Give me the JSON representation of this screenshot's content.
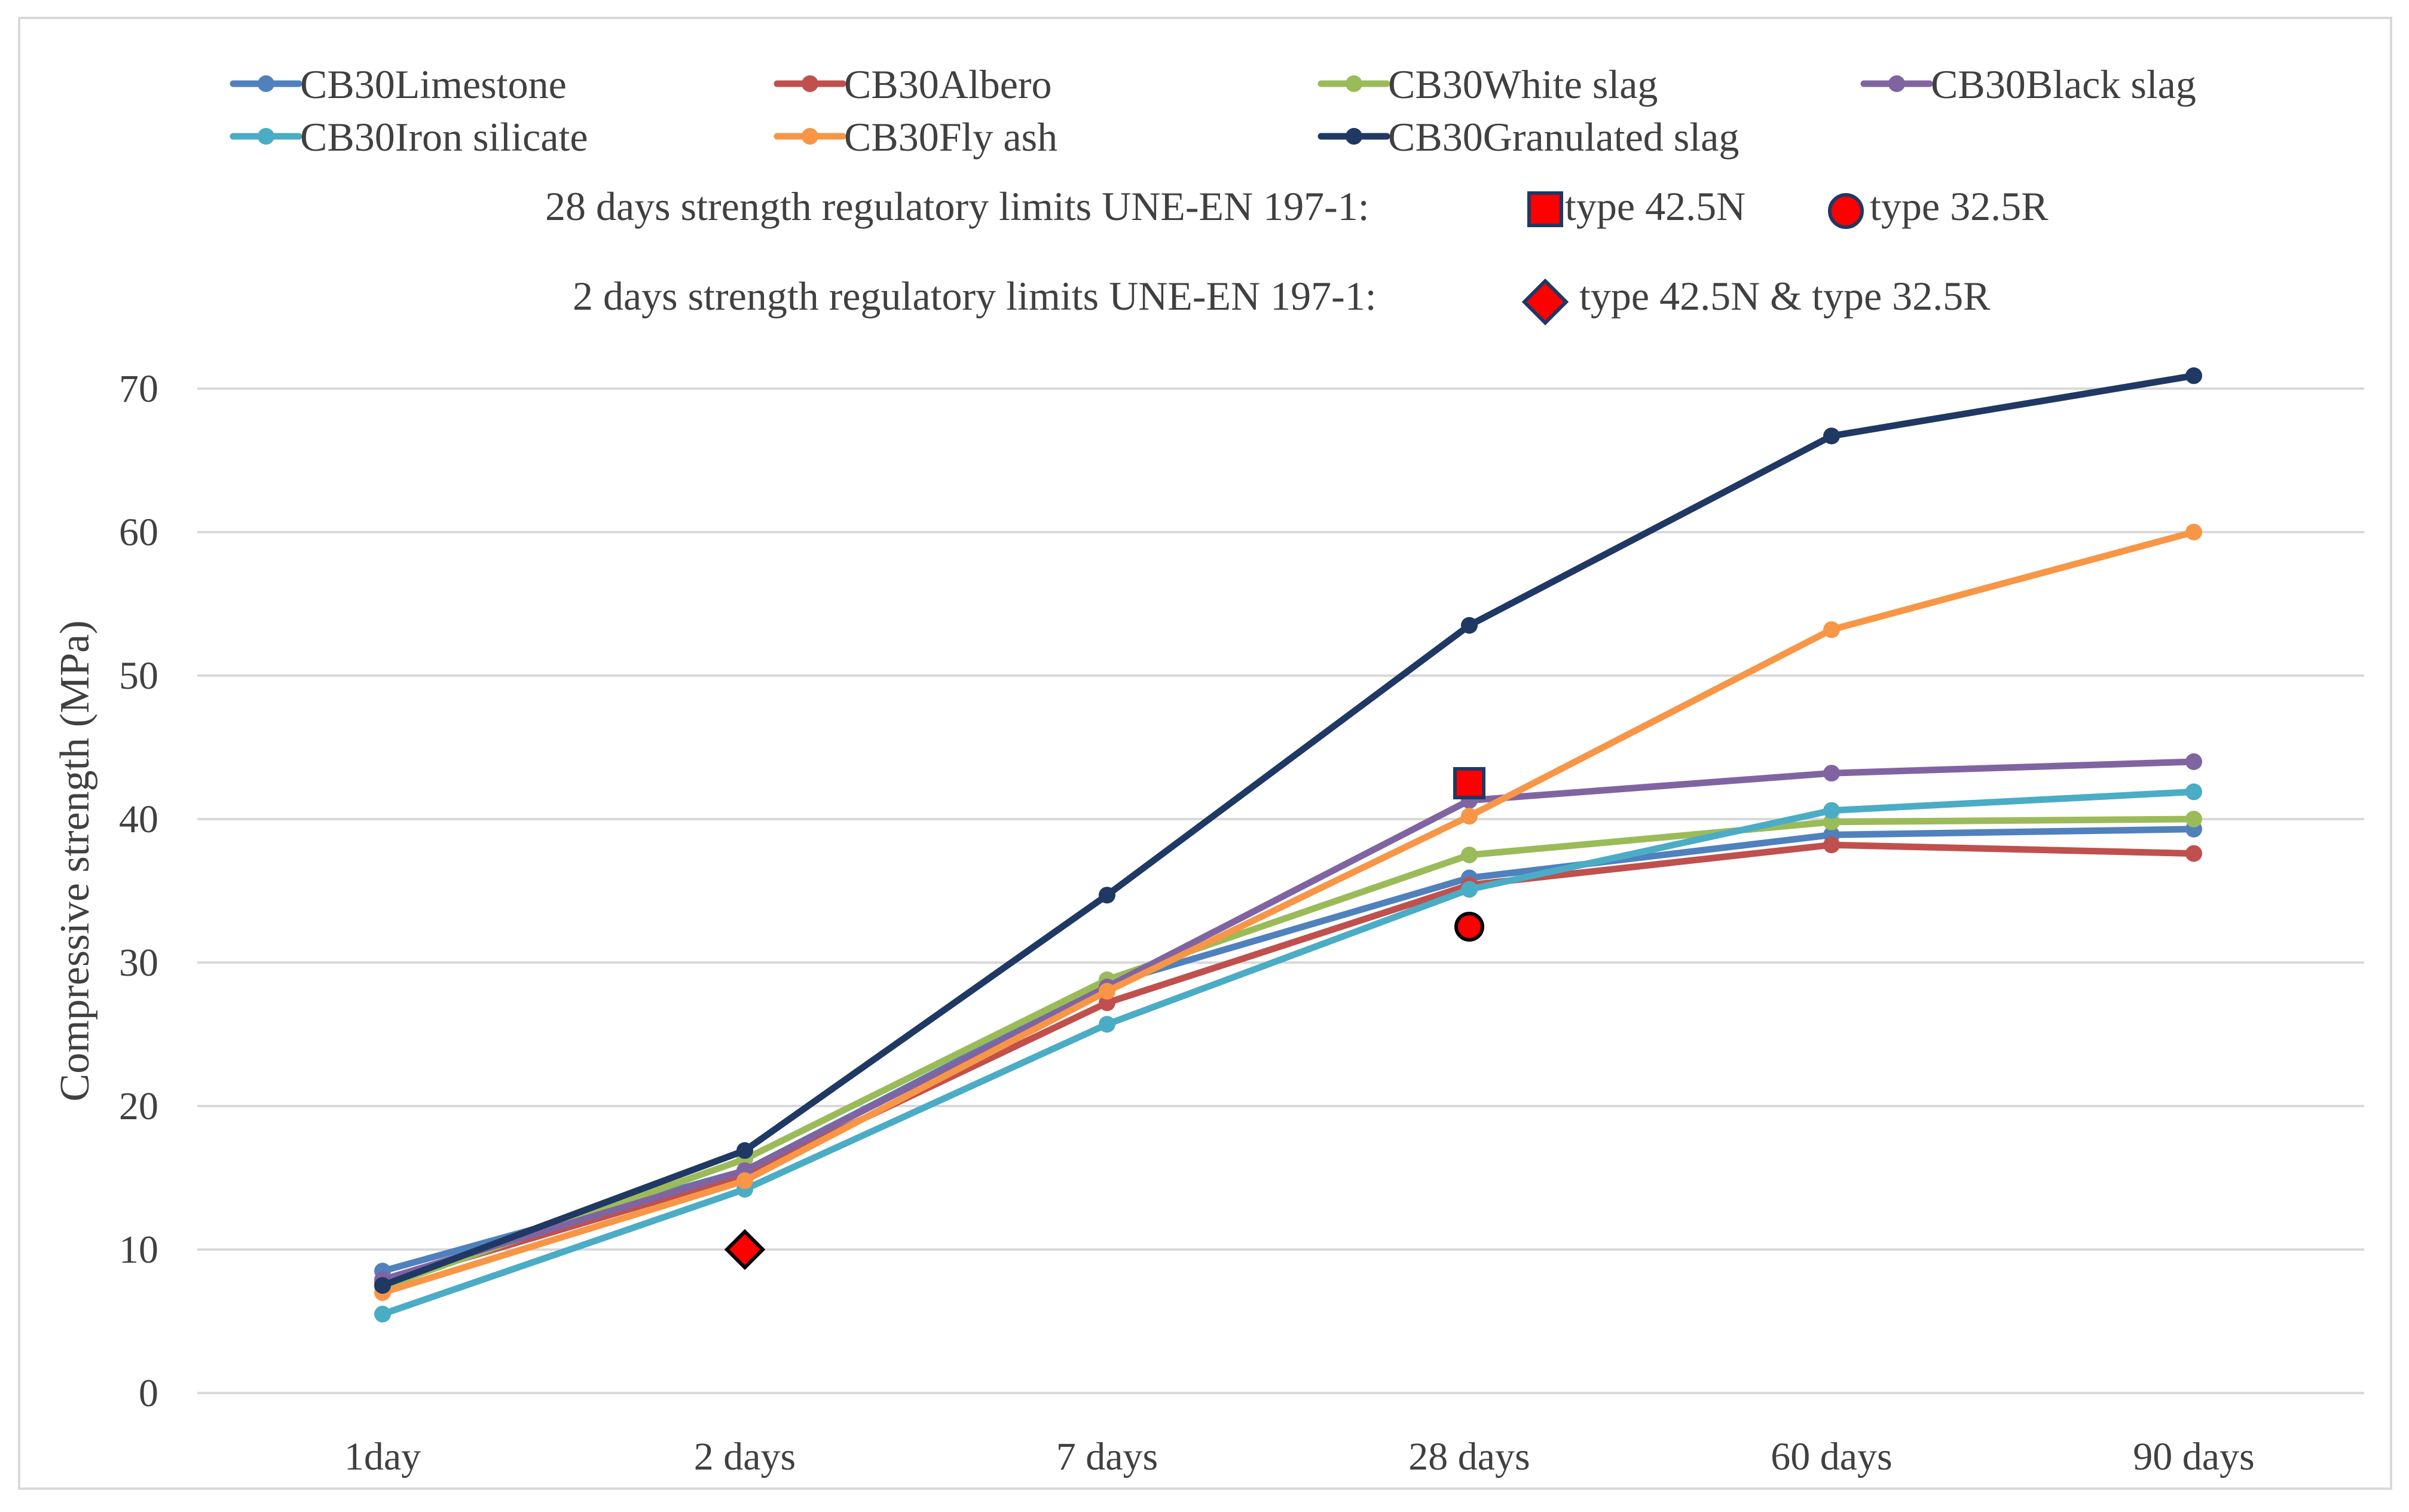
{
  "chart_data": {
    "type": "line",
    "title": "",
    "xlabel": "",
    "ylabel": "Compressive strength (MPa)",
    "categories": [
      "1day",
      "2 days",
      "7 days",
      "28 days",
      "60 days",
      "90 days"
    ],
    "ylim": [
      0,
      70
    ],
    "yticks": [
      0,
      10,
      20,
      30,
      40,
      50,
      60,
      70
    ],
    "grid": true,
    "legend_position": "top",
    "series": [
      {
        "name": "CB30Limestone",
        "color": "#4f81bd",
        "values": [
          8.5,
          15.5,
          28.5,
          35.9,
          38.9,
          39.3
        ]
      },
      {
        "name": "CB30Albero",
        "color": "#c0504d",
        "values": [
          7.7,
          15.2,
          27.2,
          35.4,
          38.2,
          37.6
        ]
      },
      {
        "name": "CB30White slag",
        "color": "#9bbb59",
        "values": [
          7.4,
          16.3,
          28.8,
          37.5,
          39.8,
          40.0
        ]
      },
      {
        "name": "CB30Black slag",
        "color": "#8064a2",
        "values": [
          7.9,
          15.5,
          28.3,
          41.3,
          43.2,
          44.0
        ]
      },
      {
        "name": "CB30Iron silicate",
        "color": "#4bacc6",
        "values": [
          5.5,
          14.2,
          25.7,
          35.1,
          40.6,
          41.9
        ]
      },
      {
        "name": "CB30Fly ash",
        "color": "#f79646",
        "values": [
          7.0,
          14.8,
          28.0,
          40.2,
          53.2,
          60.0
        ]
      },
      {
        "name": "CB30Granulated slag",
        "color": "#1f3864",
        "values": [
          7.5,
          16.9,
          34.7,
          53.5,
          66.7,
          70.9
        ]
      }
    ],
    "limits": {
      "line28": {
        "prefix": "28 days strength regulatory  limits UNE-EN 197-1:",
        "marker1_label": "type 42.5N",
        "marker2_label": "type 32.5R"
      },
      "line2": {
        "prefix": "2 days strength regulatory  limits UNE-EN 197-1:",
        "marker_label": "type 42.5N & type 32.5R"
      },
      "markers": [
        {
          "name": "type 42.5N (28 days)",
          "shape": "square",
          "category": "28 days",
          "value": 42.5,
          "color": "#ff0000"
        },
        {
          "name": "type 32.5R (28 days)",
          "shape": "circle",
          "category": "28 days",
          "value": 32.5,
          "color": "#ff0000"
        },
        {
          "name": "type 42.5N & type 32.5R (2 days)",
          "shape": "diamond",
          "category": "2 days",
          "value": 10,
          "color": "#ff0000"
        }
      ]
    }
  }
}
